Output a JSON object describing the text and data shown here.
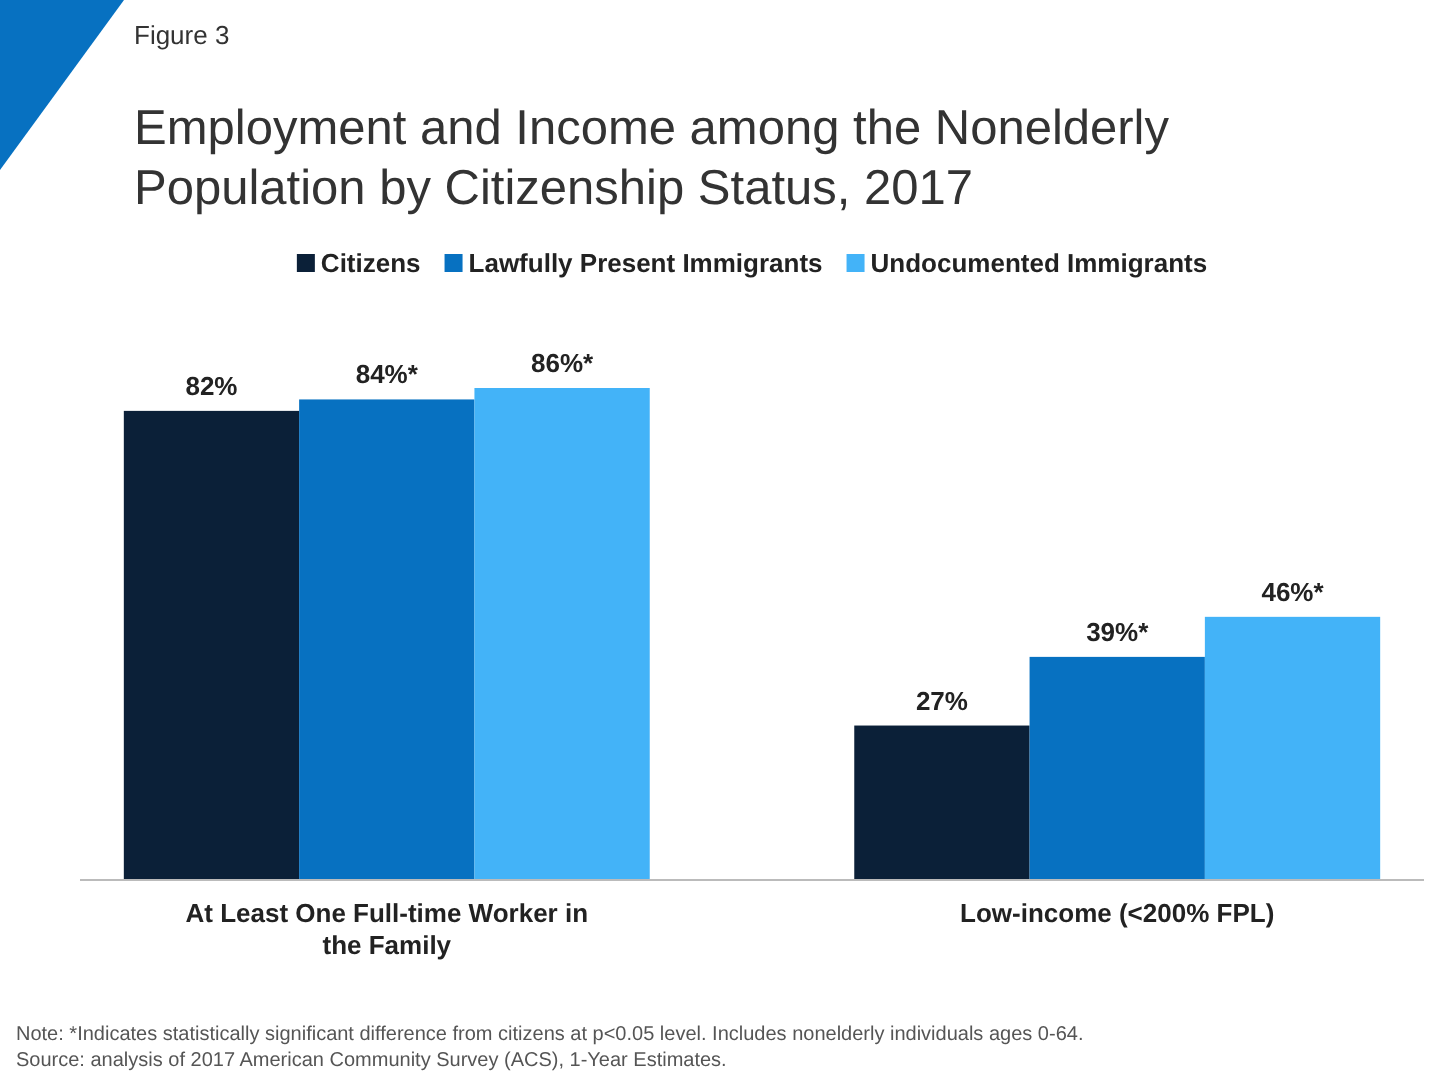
{
  "chart_data": {
    "type": "bar",
    "title": "Employment and Income among the Nonelderly Population by Citizenship Status, 2017",
    "categories": [
      "At Least One Full-time Worker in the Family",
      "Low-income (<200% FPL)"
    ],
    "series": [
      {
        "name": "Citizens",
        "color": "#0b2038",
        "values": [
          82,
          27
        ],
        "value_labels": [
          "82%",
          "27%"
        ]
      },
      {
        "name": "Lawfully Present Immigrants",
        "color": "#0771c1",
        "values": [
          84,
          39
        ],
        "value_labels": [
          "84%*",
          "39%*"
        ]
      },
      {
        "name": "Undocumented Immigrants",
        "color": "#43b3f8",
        "values": [
          86,
          46
        ],
        "value_labels": [
          "86%*",
          "46%*"
        ]
      }
    ],
    "legend": "top",
    "annotations": [
      "Figure 3",
      "Note: *Indicates statistically significant difference from citizens at p<0.05 level. Includes nonelderly individuals ages 0-64.",
      "Source: analysis of 2017 American Community Survey (ACS), 1-Year Estimates."
    ]
  }
}
